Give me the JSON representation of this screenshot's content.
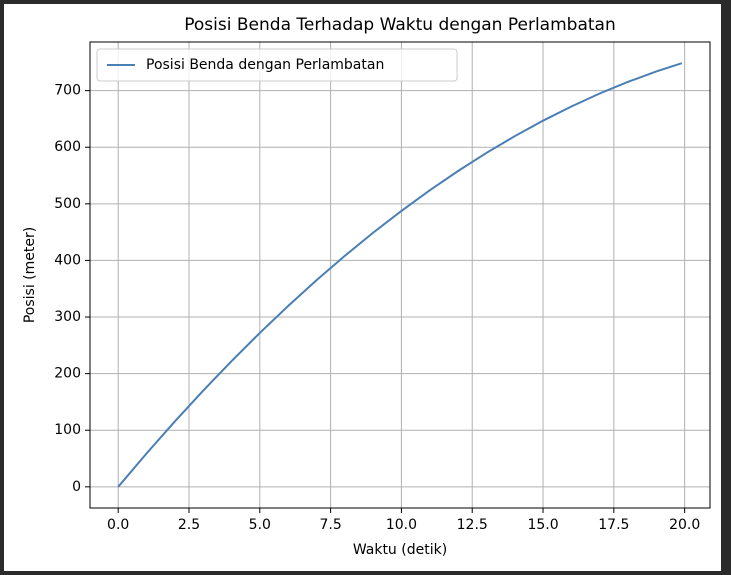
{
  "chart_data": {
    "type": "line",
    "title": "Posisi Benda Terhadap Waktu dengan Perlambatan",
    "x_label": "Waktu (detik)",
    "y_label": "Posisi (meter)",
    "x": [
      0,
      1,
      2,
      3,
      4,
      5,
      6,
      7,
      8,
      9,
      10,
      11,
      12,
      13,
      14,
      15,
      16,
      17,
      18,
      19,
      19.9
    ],
    "series": [
      {
        "name": "Posisi Benda dengan Perlambatan",
        "color": "#4a7fb5",
        "values": [
          0,
          58.9,
          115.5,
          169.9,
          222,
          271.9,
          319.5,
          364.9,
          408,
          448.9,
          487.5,
          523.9,
          558,
          589.9,
          619.5,
          646.9,
          672,
          694.9,
          715.5,
          733.9,
          748.5
        ]
      }
    ],
    "xlim": [
      -0.995,
      20.895
    ],
    "ylim": [
      -37.4,
      785.9
    ],
    "xticks": [
      {
        "value": 0,
        "label": "0.0"
      },
      2.5,
      {
        "value": 5,
        "label": "5.0"
      },
      7.5,
      {
        "value": 10,
        "label": "10.0"
      },
      12.5,
      {
        "value": 15,
        "label": "15.0"
      },
      17.5,
      {
        "value": 20,
        "label": "20.0"
      }
    ],
    "yticks": [
      0,
      100,
      200,
      300,
      400,
      500,
      600,
      700
    ],
    "grid": true,
    "legend": "upper left"
  }
}
